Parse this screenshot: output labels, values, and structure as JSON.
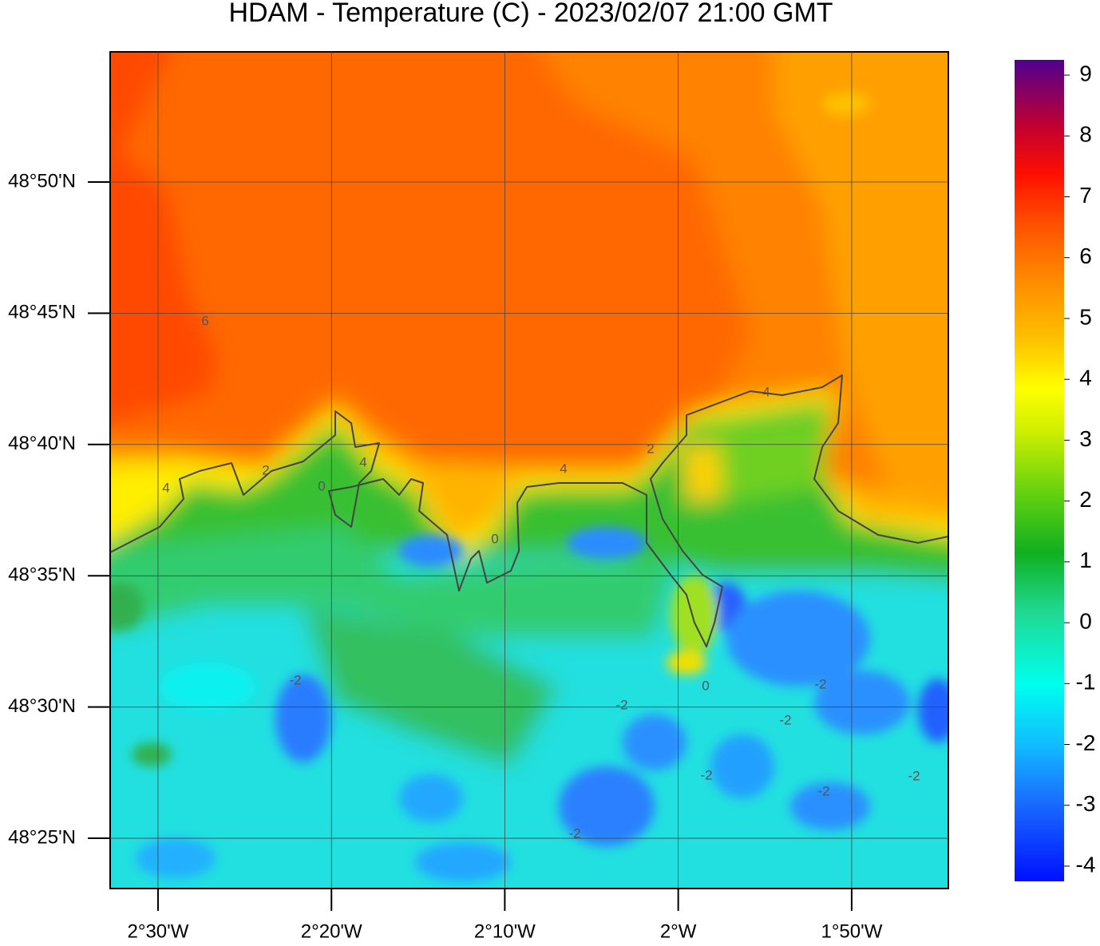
{
  "title": "HDAM - Temperature (C)  -  2023/02/07  21:00 GMT",
  "map": {
    "xlim": [
      -2.546,
      -1.7404
    ],
    "ylim": [
      48.3848,
      48.9159
    ],
    "xticks": [
      {
        "value": -2.5,
        "label": "2°30'W"
      },
      {
        "value": -2.3333,
        "label": "2°20'W"
      },
      {
        "value": -2.1667,
        "label": "2°10'W"
      },
      {
        "value": -2,
        "label": "2°W"
      },
      {
        "value": -1.8333,
        "label": "1°50'W"
      }
    ],
    "yticks": [
      {
        "value": 48.4167,
        "label": "48°25'N"
      },
      {
        "value": 48.5,
        "label": "48°30'N"
      },
      {
        "value": 48.5833,
        "label": "48°35'N"
      },
      {
        "value": 48.6667,
        "label": "48°40'N"
      },
      {
        "value": 48.75,
        "label": "48°45'N"
      },
      {
        "value": 48.8333,
        "label": "48°50'N"
      }
    ],
    "grid": true
  },
  "colorbar": {
    "lim": [
      -4.25,
      9.25
    ],
    "ticks": [
      -4,
      -3,
      -2,
      -1,
      0,
      1,
      2,
      3,
      4,
      5,
      6,
      7,
      8,
      9
    ]
  },
  "contour_labels": [
    "6",
    "4",
    "2",
    "0",
    "4",
    "4",
    "2",
    "0",
    "0",
    "4",
    "-2",
    "-2",
    "-2",
    "-2",
    "-2",
    "-2",
    "-2",
    "-2"
  ]
}
